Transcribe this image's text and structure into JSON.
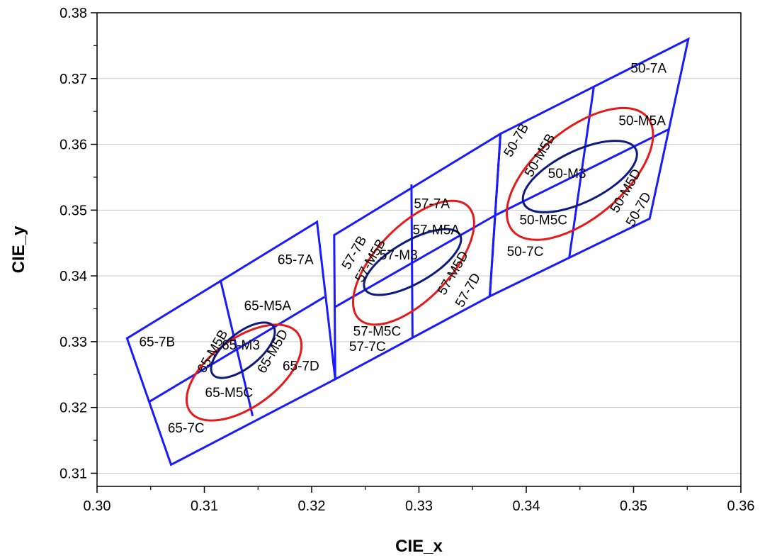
{
  "chart_data": {
    "type": "scatter",
    "title": "",
    "xlabel": "CIE_x",
    "ylabel": "CIE_y",
    "xlim": [
      0.3,
      0.36
    ],
    "ylim": [
      0.308,
      0.38
    ],
    "x_ticks": [
      "0.30",
      "0.31",
      "0.32",
      "0.33",
      "0.34",
      "0.35",
      "0.36"
    ],
    "y_ticks": [
      "0.31",
      "0.32",
      "0.33",
      "0.34",
      "0.35",
      "0.36",
      "0.37",
      "0.38"
    ],
    "grid": "horizontal",
    "colors": {
      "quadrangle": "#1a1aff",
      "outer_ellipse": "#e51a1a",
      "inner_ellipse": "#0d1a80"
    },
    "groups": [
      {
        "name": "65",
        "outline": [
          [
            0.3028,
            0.3305
          ],
          [
            0.3069,
            0.3113
          ],
          [
            0.3222,
            0.3243
          ],
          [
            0.3205,
            0.3482
          ]
        ],
        "splits": [
          [
            [
              0.3049,
              0.3209
            ],
            [
              0.3212,
              0.3368
            ]
          ],
          [
            [
              0.3115,
              0.3394
            ],
            [
              0.3145,
              0.3187
            ]
          ]
        ],
        "outer_ellipse": {
          "center": [
            0.3137,
            0.3253
          ],
          "rx": 0.0062,
          "ry": 0.0052,
          "tilt": -36
        },
        "inner_ellipse": {
          "center": [
            0.3136,
            0.3287
          ],
          "rx": 0.0036,
          "ry": 0.0026,
          "tilt": -39
        }
      },
      {
        "name": "57",
        "outline": [
          [
            0.3221,
            0.3462
          ],
          [
            0.3222,
            0.3243
          ],
          [
            0.3366,
            0.3369
          ],
          [
            0.3376,
            0.3616
          ]
        ],
        "splits": [
          [
            [
              0.3221,
              0.3352
            ],
            [
              0.3371,
              0.3492
            ]
          ],
          [
            [
              0.3293,
              0.3539
            ],
            [
              0.3294,
              0.3306
            ]
          ]
        ],
        "outer_ellipse": {
          "center": [
            0.3295,
            0.342
          ],
          "rx": 0.0073,
          "ry": 0.0056,
          "tilt": -46
        },
        "inner_ellipse": {
          "center": [
            0.3294,
            0.3421
          ],
          "rx": 0.0051,
          "ry": 0.0032,
          "tilt": -30
        }
      },
      {
        "name": "50",
        "outline": [
          [
            0.3376,
            0.3616
          ],
          [
            0.3366,
            0.3369
          ],
          [
            0.3515,
            0.3487
          ],
          [
            0.3551,
            0.376
          ]
        ],
        "splits": [
          [
            [
              0.3371,
              0.3492
            ],
            [
              0.3533,
              0.3623
            ]
          ],
          [
            [
              0.3463,
              0.3688
            ],
            [
              0.344,
              0.3427
            ]
          ]
        ],
        "outer_ellipse": {
          "center": [
            0.345,
            0.3555
          ],
          "rx": 0.0082,
          "ry": 0.0067,
          "tilt": -40
        },
        "inner_ellipse": {
          "center": [
            0.345,
            0.3551
          ],
          "rx": 0.0058,
          "ry": 0.0039,
          "tilt": -26
        }
      }
    ],
    "labels": [
      {
        "text": "65-7A",
        "x": 0.3185,
        "y": 0.3424,
        "rotate": 0
      },
      {
        "text": "65-7B",
        "x": 0.3056,
        "y": 0.3299,
        "rotate": 0
      },
      {
        "text": "65-7C",
        "x": 0.3083,
        "y": 0.3168,
        "rotate": 0
      },
      {
        "text": "65-7D",
        "x": 0.319,
        "y": 0.3262,
        "rotate": 0
      },
      {
        "text": "65-M5A",
        "x": 0.3159,
        "y": 0.3354,
        "rotate": 0
      },
      {
        "text": "65-M5B",
        "x": 0.3108,
        "y": 0.3285,
        "rotate": -60
      },
      {
        "text": "65-M5C",
        "x": 0.3123,
        "y": 0.3222,
        "rotate": 0
      },
      {
        "text": "65-M5D",
        "x": 0.3164,
        "y": 0.3285,
        "rotate": -60
      },
      {
        "text": "65-M3",
        "x": 0.3134,
        "y": 0.3294,
        "rotate": 0
      },
      {
        "text": "57-7A",
        "x": 0.3312,
        "y": 0.3509,
        "rotate": 0
      },
      {
        "text": "57-7B",
        "x": 0.324,
        "y": 0.3435,
        "rotate": -60
      },
      {
        "text": "57-7C",
        "x": 0.3252,
        "y": 0.3292,
        "rotate": 0
      },
      {
        "text": "57-7D",
        "x": 0.3346,
        "y": 0.3378,
        "rotate": -60
      },
      {
        "text": "57-M5A",
        "x": 0.3316,
        "y": 0.3469,
        "rotate": 0
      },
      {
        "text": "57-M5B",
        "x": 0.3255,
        "y": 0.3423,
        "rotate": -60
      },
      {
        "text": "57-M5C",
        "x": 0.3261,
        "y": 0.3315,
        "rotate": 0
      },
      {
        "text": "57-M5D",
        "x": 0.3332,
        "y": 0.3404,
        "rotate": -60
      },
      {
        "text": "57-M3",
        "x": 0.3281,
        "y": 0.3431,
        "rotate": 0
      },
      {
        "text": "50-7A",
        "x": 0.3514,
        "y": 0.3715,
        "rotate": 0
      },
      {
        "text": "50-7B",
        "x": 0.3391,
        "y": 0.3606,
        "rotate": -60
      },
      {
        "text": "50-7C",
        "x": 0.3399,
        "y": 0.3436,
        "rotate": 0
      },
      {
        "text": "50-7D",
        "x": 0.3505,
        "y": 0.3501,
        "rotate": -60
      },
      {
        "text": "50-M5A",
        "x": 0.3508,
        "y": 0.3635,
        "rotate": 0
      },
      {
        "text": "50-M5B",
        "x": 0.3413,
        "y": 0.3583,
        "rotate": -60
      },
      {
        "text": "50-M5C",
        "x": 0.3416,
        "y": 0.3484,
        "rotate": 0
      },
      {
        "text": "50-M5D",
        "x": 0.3493,
        "y": 0.3529,
        "rotate": -60
      },
      {
        "text": "50-M3",
        "x": 0.3438,
        "y": 0.3555,
        "rotate": 0
      }
    ]
  }
}
